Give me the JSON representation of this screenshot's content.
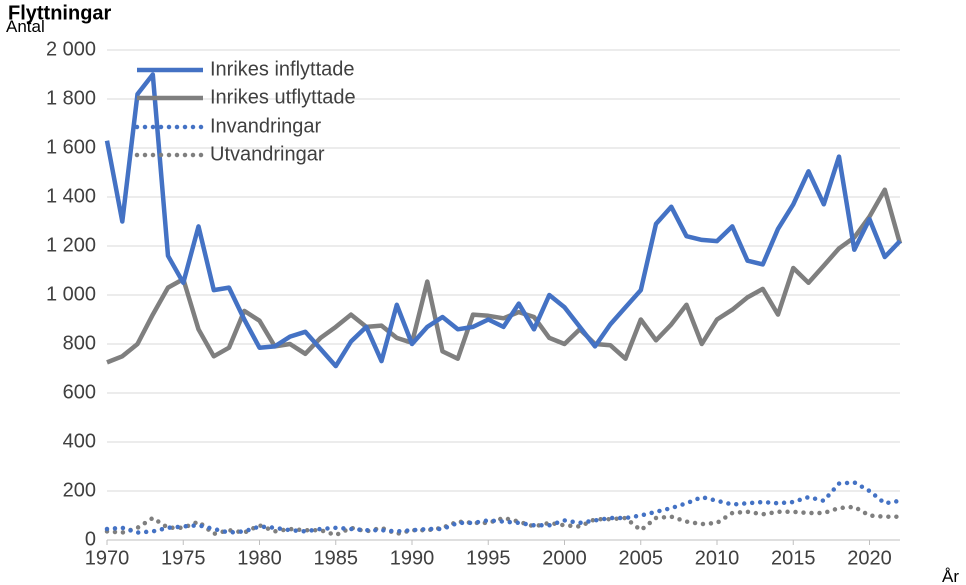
{
  "chart_data": {
    "type": "line",
    "title": "Flyttningar",
    "xlabel": "År",
    "ylabel": "Antal",
    "xlim": [
      1970,
      2022
    ],
    "ylim": [
      0,
      2000
    ],
    "x_ticks": [
      1970,
      1975,
      1980,
      1985,
      1990,
      1995,
      2000,
      2005,
      2010,
      2015,
      2020
    ],
    "y_ticks": [
      0,
      200,
      400,
      600,
      800,
      1000,
      1200,
      1400,
      1600,
      1800,
      2000
    ],
    "y_tick_labels": [
      "0",
      "200",
      "400",
      "600",
      "800",
      "1 000",
      "1 200",
      "1 400",
      "1 600",
      "1 800",
      "2 000"
    ],
    "grid": "horizontal",
    "legend_position": "top-left",
    "x": [
      1970,
      1971,
      1972,
      1973,
      1974,
      1975,
      1976,
      1977,
      1978,
      1979,
      1980,
      1981,
      1982,
      1983,
      1984,
      1985,
      1986,
      1987,
      1988,
      1989,
      1990,
      1991,
      1992,
      1993,
      1994,
      1995,
      1996,
      1997,
      1998,
      1999,
      2000,
      2001,
      2002,
      2003,
      2004,
      2005,
      2006,
      2007,
      2008,
      2009,
      2010,
      2011,
      2012,
      2013,
      2014,
      2015,
      2016,
      2017,
      2018,
      2019,
      2020,
      2021,
      2022
    ],
    "series": [
      {
        "name": "Inrikes inflyttade",
        "color": "#4472C4",
        "style": "solid",
        "values": [
          1630,
          1300,
          1820,
          1900,
          1160,
          1050,
          1280,
          1020,
          1030,
          900,
          785,
          790,
          830,
          850,
          780,
          710,
          810,
          870,
          730,
          960,
          800,
          870,
          910,
          860,
          870,
          900,
          870,
          965,
          860,
          1000,
          950,
          870,
          790,
          880,
          950,
          1020,
          1290,
          1360,
          1240,
          1225,
          1220,
          1280,
          1140,
          1125,
          1270,
          1370,
          1505,
          1370,
          1565,
          1185,
          1310,
          1155,
          1220
        ]
      },
      {
        "name": "Inrikes utflyttade",
        "color": "#7F7F7F",
        "style": "solid",
        "values": [
          725,
          750,
          800,
          920,
          1030,
          1065,
          860,
          750,
          785,
          935,
          895,
          790,
          800,
          760,
          825,
          870,
          920,
          870,
          875,
          825,
          805,
          1055,
          770,
          740,
          920,
          915,
          905,
          930,
          910,
          825,
          800,
          860,
          800,
          795,
          740,
          900,
          815,
          880,
          960,
          800,
          900,
          940,
          990,
          1025,
          920,
          1110,
          1050,
          1120,
          1190,
          1235,
          1320,
          1430,
          1210
        ]
      },
      {
        "name": "Invandringar",
        "color": "#4472C4",
        "style": "dotted",
        "values": [
          45,
          50,
          30,
          35,
          50,
          55,
          60,
          45,
          30,
          35,
          55,
          50,
          40,
          35,
          45,
          50,
          45,
          40,
          40,
          35,
          40,
          45,
          45,
          70,
          70,
          80,
          75,
          70,
          60,
          60,
          80,
          70,
          80,
          90,
          90,
          100,
          115,
          130,
          150,
          175,
          160,
          145,
          150,
          155,
          150,
          155,
          175,
          160,
          230,
          235,
          200,
          150,
          160
        ]
      },
      {
        "name": "Utvandringar",
        "color": "#7F7F7F",
        "style": "dotted",
        "values": [
          35,
          30,
          50,
          90,
          50,
          50,
          75,
          25,
          40,
          30,
          60,
          35,
          45,
          40,
          40,
          20,
          50,
          35,
          50,
          25,
          40,
          40,
          50,
          75,
          70,
          70,
          90,
          75,
          55,
          70,
          60,
          55,
          85,
          85,
          90,
          40,
          90,
          95,
          75,
          65,
          70,
          110,
          115,
          105,
          115,
          115,
          110,
          110,
          130,
          135,
          100,
          95,
          95
        ]
      }
    ]
  }
}
